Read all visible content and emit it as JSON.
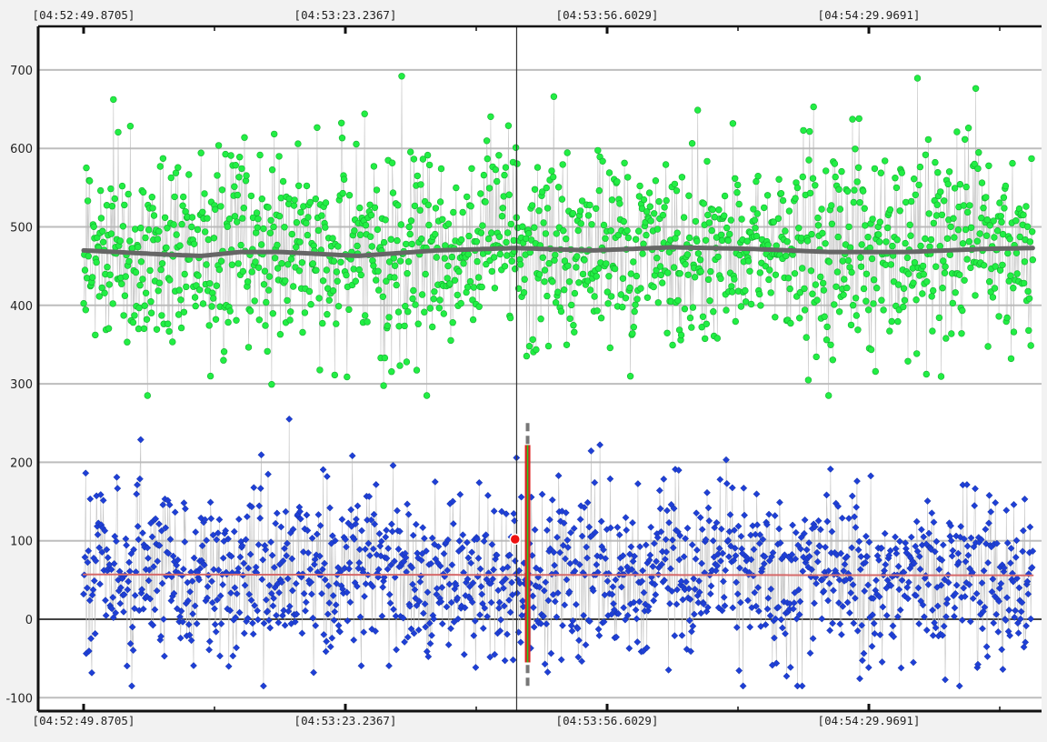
{
  "chart_data": {
    "type": "scatter",
    "title": "",
    "xlabel": "",
    "ylabel": "",
    "x_tick_labels": [
      "[04:52:49.8705]",
      "[04:53:23.2367]",
      "[04:53:56.6029]",
      "[04:54:29.9691]"
    ],
    "x_tick_seconds": [
      0,
      33.3662,
      66.7324,
      100.0986
    ],
    "x_range_seconds": [
      0,
      121
    ],
    "ylim": [
      -110,
      770
    ],
    "y_ticks": [
      -100,
      0,
      100,
      200,
      300,
      400,
      500,
      600,
      700
    ],
    "grid": true,
    "cursor_x_seconds": 55.2,
    "selection_x_seconds": 56.6,
    "highlight_point": {
      "x_seconds": 55.0,
      "y": 102
    },
    "series": [
      {
        "color": "#22ee44",
        "marker": "circle",
        "baseline": 470,
        "trend": [
          [
            0,
            470
          ],
          [
            10,
            465
          ],
          [
            15,
            463
          ],
          [
            20,
            468
          ],
          [
            25,
            468
          ],
          [
            35,
            463
          ],
          [
            45,
            470
          ],
          [
            55,
            473
          ],
          [
            65,
            470
          ],
          [
            75,
            474
          ],
          [
            85,
            472
          ],
          [
            95,
            468
          ],
          [
            105,
            468
          ],
          [
            115,
            472
          ],
          [
            121,
            473
          ]
        ],
        "spread": [
          285,
          730
        ],
        "points": 1400
      },
      {
        "color": "#1f3fd6",
        "marker": "diamond",
        "baseline": 57,
        "trend": [
          [
            0,
            57
          ],
          [
            121,
            56
          ]
        ],
        "spread": [
          -85,
          255
        ],
        "points": 1400
      }
    ],
    "colors": {
      "green_series": "#22ee44",
      "blue_series": "#1f3fd6",
      "green_trend": "#666666",
      "blue_trend": "#d66a6a",
      "cursor_line": "#333333",
      "selection_band": "#e02020",
      "selection_band_inner": "#22cc22",
      "highlight": "#ee1111"
    }
  }
}
